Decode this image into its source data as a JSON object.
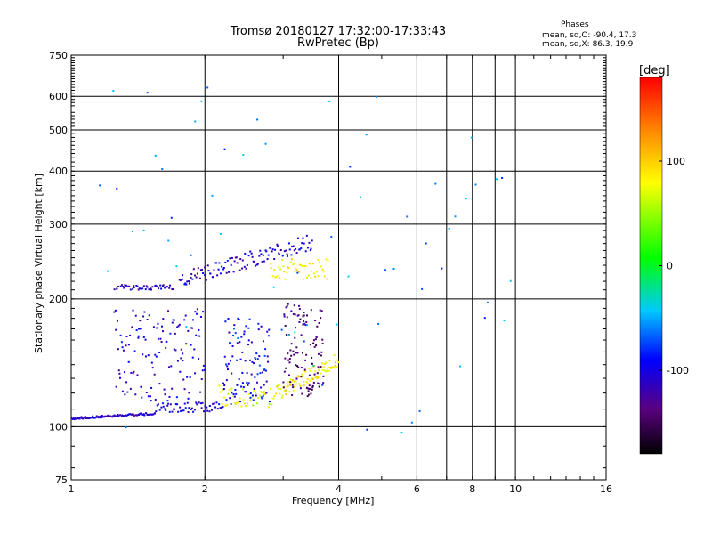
{
  "header": {
    "title_line1": "Tromsø 20180127 17:32:00-17:33:43",
    "title_line2": "RwPretec (Bp)",
    "phase_title": "Phases",
    "phase_o": "mean, sd,O: -90.4, 17.3",
    "phase_x": "mean, sd,X:  86.3, 19.9"
  },
  "chart_data": {
    "type": "scatter",
    "xlabel": "Frequency [MHz]",
    "ylabel": "Stationary phase Virtual Height [km]",
    "xscale": "log",
    "yscale": "log",
    "xlim": [
      1,
      16
    ],
    "ylim": [
      75,
      750
    ],
    "x_ticks": [
      1,
      2,
      4,
      6,
      8,
      10,
      16
    ],
    "x_minor_ticks": [
      7,
      9
    ],
    "y_ticks": [
      75,
      100,
      200,
      300,
      400,
      500,
      600,
      750
    ],
    "grid": true,
    "colorbar": {
      "label": "[deg]",
      "range": [
        -180,
        180
      ],
      "ticks": [
        100,
        0,
        -100
      ],
      "tick_labels": [
        "100",
        "0",
        "-100"
      ]
    },
    "series": [
      {
        "x_range": [
          1.0,
          1.55
        ],
        "y_range": [
          104,
          108
        ],
        "phase": -110,
        "n": 90
      },
      {
        "x_range": [
          1.55,
          2.2
        ],
        "y_range": [
          108,
          114
        ],
        "phase": -105,
        "n": 55
      },
      {
        "x_range": [
          2.15,
          2.9
        ],
        "y_range": [
          111,
          125
        ],
        "phase": 75,
        "n": 45
      },
      {
        "x_range": [
          2.9,
          4.0
        ],
        "y_range": [
          115,
          150
        ],
        "phase": 85,
        "n": 80
      },
      {
        "x_range": [
          1.25,
          1.7
        ],
        "y_range": [
          210,
          216
        ],
        "phase": -110,
        "n": 45
      },
      {
        "x_range": [
          1.75,
          3.5
        ],
        "y_range": [
          212,
          285
        ],
        "phase": -105,
        "n": 120
      },
      {
        "x_range": [
          2.8,
          3.8
        ],
        "y_range": [
          222,
          248
        ],
        "phase": 85,
        "n": 50
      },
      {
        "x_range": [
          1.25,
          2.0
        ],
        "y_range": [
          115,
          190
        ],
        "phase": -105,
        "n": 130
      },
      {
        "x_range": [
          2.2,
          2.8
        ],
        "y_range": [
          112,
          180
        ],
        "phase": -95,
        "n": 100
      },
      {
        "x_range": [
          3.0,
          3.7
        ],
        "y_range": [
          118,
          195
        ],
        "phase": -140,
        "n": 110
      },
      {
        "x_range": [
          1.15,
          10.0
        ],
        "y_range": [
          95,
          650
        ],
        "phase": -60,
        "n": 70
      }
    ]
  },
  "colors": {
    "o_mode": "#1e2fe6",
    "x_mode": "#f0f000",
    "grid": "#000000",
    "background": "#ffffff"
  }
}
